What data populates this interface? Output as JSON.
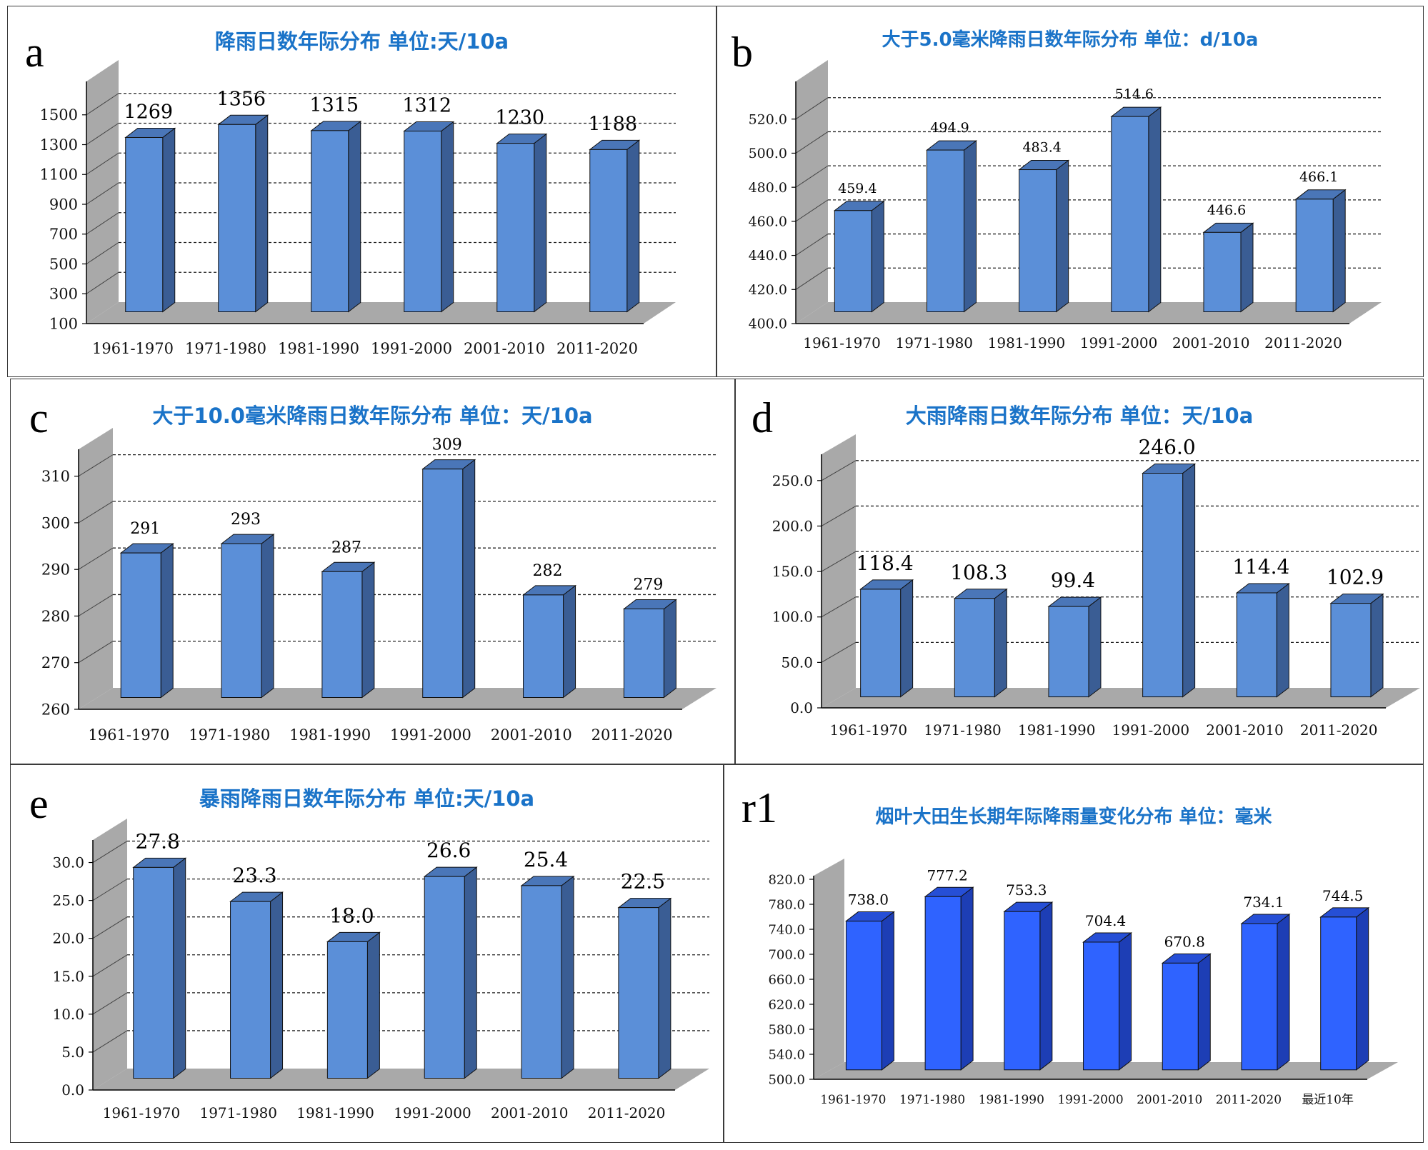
{
  "chart_data": [
    {
      "id": "a",
      "type": "bar",
      "panel_label": "a",
      "title": "降雨日数年际分布  单位:天/10a",
      "categories": [
        "1961-1970",
        "1971-1980",
        "1981-1990",
        "1991-2000",
        "2001-2010",
        "2011-2020"
      ],
      "values": [
        1269,
        1356,
        1315,
        1312,
        1230,
        1188
      ],
      "value_labels": [
        "1269",
        "1356",
        "1315",
        "1312",
        "1230",
        "1188"
      ],
      "yticks": [
        100,
        300,
        500,
        700,
        900,
        1100,
        1300,
        1500
      ],
      "ytick_labels": [
        "100",
        "300",
        "500",
        "700",
        "900",
        "1100",
        "1300",
        "1500"
      ],
      "ylim": [
        100,
        1700
      ],
      "grid": true
    },
    {
      "id": "b",
      "type": "bar",
      "panel_label": "b",
      "title": "大于5.0毫米降雨日数年际分布   单位：d/10a",
      "categories": [
        "1961-1970",
        "1971-1980",
        "1981-1990",
        "1991-2000",
        "2001-2010",
        "2011-2020"
      ],
      "values": [
        459.4,
        494.9,
        483.4,
        514.6,
        446.6,
        466.1
      ],
      "value_labels": [
        "459.4",
        "494.9",
        "483.4",
        "514.6",
        "446.6",
        "466.1"
      ],
      "yticks": [
        400,
        420,
        440,
        460,
        480,
        500,
        520
      ],
      "ytick_labels": [
        "400.0",
        "420.0",
        "440.0",
        "460.0",
        "480.0",
        "500.0",
        "520.0"
      ],
      "ylim": [
        400,
        540
      ],
      "grid": true
    },
    {
      "id": "c",
      "type": "bar",
      "panel_label": "c",
      "title": "大于10.0毫米降雨日数年际分布    单位：天/10a",
      "categories": [
        "1961-1970",
        "1971-1980",
        "1981-1990",
        "1991-2000",
        "2001-2010",
        "2011-2020"
      ],
      "values": [
        291,
        293,
        287,
        309,
        282,
        279
      ],
      "value_labels": [
        "291",
        "293",
        "287",
        "309",
        "282",
        "279"
      ],
      "yticks": [
        260,
        270,
        280,
        290,
        300,
        310
      ],
      "ytick_labels": [
        "260",
        "270",
        "280",
        "290",
        "300",
        "310"
      ],
      "ylim": [
        260,
        315
      ],
      "grid": true
    },
    {
      "id": "d",
      "type": "bar",
      "panel_label": "d",
      "title": "大雨降雨日数年际分布    单位：天/10a",
      "categories": [
        "1961-1970",
        "1971-1980",
        "1981-1990",
        "1991-2000",
        "2001-2010",
        "2011-2020"
      ],
      "values": [
        118.4,
        108.3,
        99.4,
        246.0,
        114.4,
        102.9
      ],
      "value_labels": [
        "118.4",
        "108.3",
        "99.4",
        "246.0",
        "114.4",
        "102.9"
      ],
      "yticks": [
        0,
        50,
        100,
        150,
        200,
        250
      ],
      "ytick_labels": [
        "0.0",
        "50.0",
        "100.0",
        "150.0",
        "200.0",
        "250.0"
      ],
      "ylim": [
        0,
        275
      ],
      "grid": true
    },
    {
      "id": "e",
      "type": "bar",
      "panel_label": "e",
      "title": "暴雨降雨日数年际分布    单位:天/10a",
      "categories": [
        "1961-1970",
        "1971-1980",
        "1981-1990",
        "1991-2000",
        "2001-2010",
        "2011-2020"
      ],
      "values": [
        27.8,
        23.3,
        18.0,
        26.6,
        25.4,
        22.5
      ],
      "value_labels": [
        "27.8",
        "23.3",
        "18.0",
        "26.6",
        "25.4",
        "22.5"
      ],
      "yticks": [
        0,
        5,
        10,
        15,
        20,
        25,
        30
      ],
      "ytick_labels": [
        "0.0",
        "5.0",
        "10.0",
        "15.0",
        "20.0",
        "25.0",
        "30.0"
      ],
      "ylim": [
        0,
        32.5
      ],
      "grid": true
    },
    {
      "id": "r1",
      "type": "bar",
      "panel_label": "r1",
      "title": "烟叶大田生长期年际降雨量变化分布  单位：毫米",
      "categories": [
        "1961-1970",
        "1971-1980",
        "1981-1990",
        "1991-2000",
        "2001-2010",
        "2011-2020",
        "最近10年"
      ],
      "values": [
        738.0,
        777.2,
        753.3,
        704.4,
        670.8,
        734.1,
        744.5
      ],
      "value_labels": [
        "738.0",
        "777.2",
        "753.3",
        "704.4",
        "670.8",
        "734.1",
        "744.5"
      ],
      "yticks": [
        500,
        540,
        580,
        620,
        660,
        700,
        740,
        780,
        820
      ],
      "ytick_labels": [
        "500.0",
        "540.0",
        "580.0",
        "620.0",
        "660.0",
        "700.0",
        "740.0",
        "780.0",
        "820.0"
      ],
      "ylim": [
        500,
        820
      ],
      "grid": false
    }
  ],
  "colors": {
    "bar_front": "#5b8fd8",
    "bar_side": "#3a5d94",
    "bar_top": "#4a76b8",
    "bar_front_r1": "#2f63ff",
    "bar_side_r1": "#1d3eb5",
    "bar_top_r1": "#264fd6",
    "floor": "#a9a9a9",
    "wall": "#a9a9a9",
    "title": "#1a73c8"
  }
}
